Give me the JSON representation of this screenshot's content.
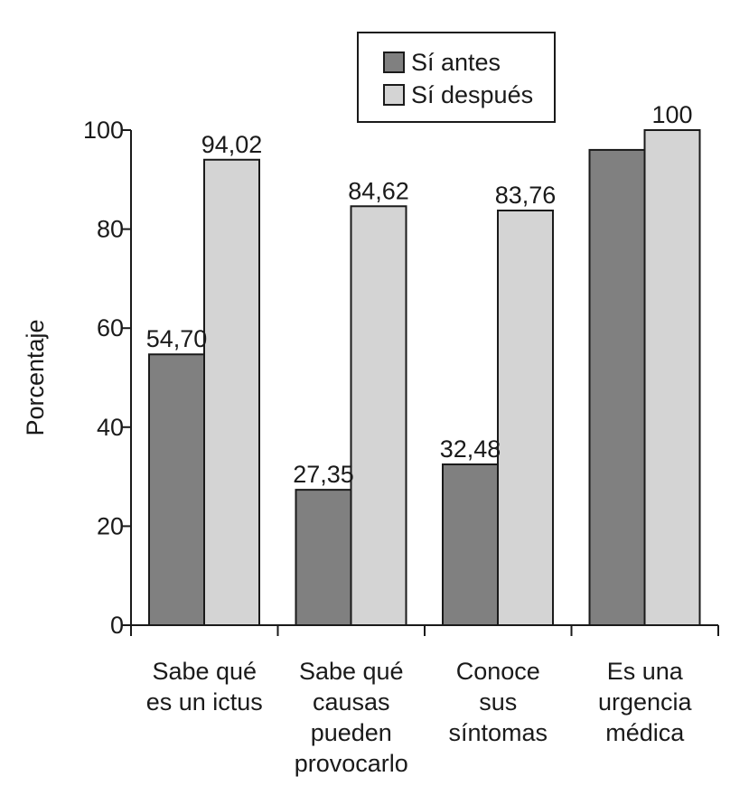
{
  "chart_data": {
    "type": "bar",
    "categories": [
      [
        "Sabe qué",
        "es un ictus"
      ],
      [
        "Sabe qué",
        "causas",
        "pueden",
        "provocarlo"
      ],
      [
        "Conoce",
        "sus",
        "síntomas"
      ],
      [
        "Es una",
        "urgencia",
        "médica"
      ]
    ],
    "series": [
      {
        "name": "Sí antes",
        "color": "#808080",
        "values": [
          54.7,
          27.35,
          32.48,
          96.0
        ],
        "labels": [
          "54,70",
          "27,35",
          "32,48",
          ""
        ]
      },
      {
        "name": "Sí después",
        "color": "#d4d4d4",
        "values": [
          94.02,
          84.62,
          83.76,
          100
        ],
        "labels": [
          "94,02",
          "84,62",
          "83,76",
          "100"
        ]
      }
    ],
    "title": "",
    "xlabel": "",
    "ylabel": "Porcentaje",
    "ylim": [
      0,
      100
    ],
    "yticks": [
      0,
      20,
      40,
      60,
      80,
      100
    ],
    "grid": false,
    "legend": "top-center"
  }
}
